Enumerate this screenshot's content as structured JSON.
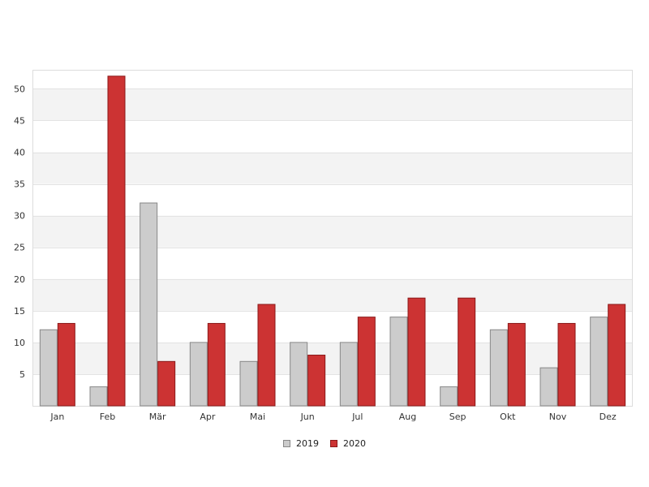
{
  "chart_data": {
    "type": "bar",
    "categories": [
      "Jan",
      "Feb",
      "Mär",
      "Apr",
      "Mai",
      "Jun",
      "Jul",
      "Aug",
      "Sep",
      "Okt",
      "Nov",
      "Dez"
    ],
    "series": [
      {
        "name": "2019",
        "values": [
          12,
          3,
          32,
          10,
          7,
          10,
          10,
          14,
          3,
          12,
          6,
          14
        ],
        "color": "#cccccc",
        "stroke": "#888888"
      },
      {
        "name": "2020",
        "values": [
          13,
          52,
          7,
          13,
          16,
          8,
          14,
          17,
          17,
          13,
          13,
          16
        ],
        "color": "#cc3333",
        "stroke": "#8b1a1a"
      }
    ],
    "ylim": [
      0,
      53
    ],
    "yticks": [
      5,
      10,
      15,
      20,
      25,
      30,
      35,
      40,
      45,
      50
    ],
    "grid": true,
    "band_color": "#f3f3f3",
    "legend_position": "bottom-center"
  }
}
